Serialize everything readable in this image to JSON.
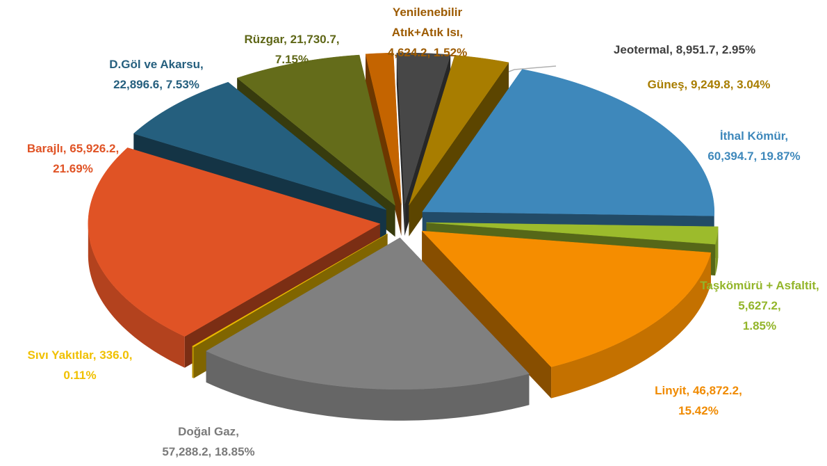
{
  "chart_data": {
    "type": "pie3d",
    "categories": [
      "İthal Kömür",
      "Taşkömürü + Asfaltit",
      "Linyit",
      "Doğal Gaz",
      "Sıvı Yakıtlar",
      "Barajlı",
      "D.Göl ve Akarsu",
      "Rüzgar",
      "Yenilenebilir Atık+Atık Isı",
      "Jeotermal",
      "Güneş"
    ],
    "values": [
      60394.7,
      5627.2,
      46872.2,
      57288.2,
      336.0,
      65926.2,
      22896.6,
      21730.7,
      4624.2,
      8951.7,
      9249.8
    ],
    "value_labels": [
      "60,394.7",
      "5,627.2",
      "46,872.2",
      "57,288.2",
      "336.0",
      "65,926.2",
      "22,896.6",
      "21,730.7",
      "4,624.2",
      "8,951.7",
      "9,249.8"
    ],
    "percent_labels": [
      "19.87%",
      "1.85%",
      "15.42%",
      "18.85%",
      "0.11%",
      "21.69%",
      "7.53%",
      "7.15%",
      "1.52%",
      "2.95%",
      "3.04%"
    ],
    "colors": [
      "#3e88bb",
      "#9cbb2c",
      "#f58d00",
      "#808080",
      "#e9b800",
      "#e05325",
      "#255f7e",
      "#646c1a",
      "#c46400",
      "#474747",
      "#a87d00"
    ],
    "label_colors": [
      "#3e88bb",
      "#93b52a",
      "#f08a00",
      "#7a7a7a",
      "#f0c000",
      "#e05325",
      "#255f7e",
      "#5e6616",
      "#9c5a00",
      "#404040",
      "#a87d00"
    ]
  }
}
